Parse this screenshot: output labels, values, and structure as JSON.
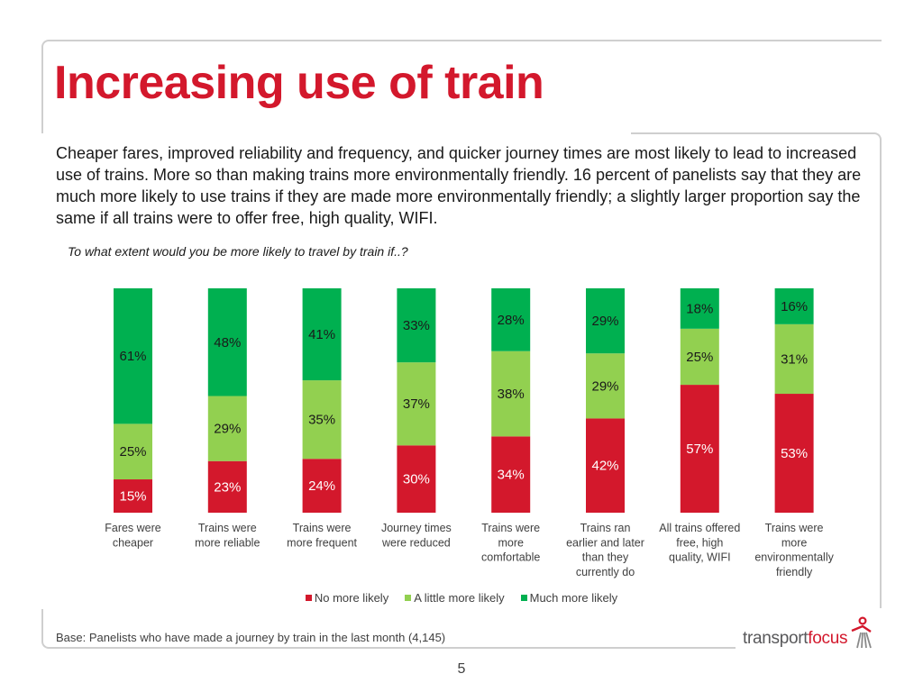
{
  "title": "Increasing use of train",
  "intro": "Cheaper fares, improved reliability and frequency, and quicker journey times are most likely to lead to increased use of trains. More so than making trains more environmentally friendly. 16 percent of panelists say that they are much more likely to use trains if they are made more environmentally friendly; a slightly larger proportion say the same if all trains were to offer free, high quality, WIFI.",
  "question": "To what extent would you be more likely to travel by train if..?",
  "colors": {
    "red": "#d3182c",
    "light_green": "#92d050",
    "dark_green": "#00b050"
  },
  "chart_data": {
    "type": "bar",
    "stacked": true,
    "unit": "%",
    "categories": [
      "Fares were cheaper",
      "Trains were more reliable",
      "Trains were more frequent",
      "Journey times were reduced",
      "Trains were more comfortable",
      "Trains ran earlier and later than they currently do",
      "All trains offered free, high quality, WIFI",
      "Trains were more environmentally friendly"
    ],
    "category_lines": [
      [
        "Fares were",
        "cheaper"
      ],
      [
        "Trains were",
        "more reliable"
      ],
      [
        "Trains were",
        "more frequent"
      ],
      [
        "Journey times",
        "were reduced"
      ],
      [
        "Trains were",
        "more",
        "comfortable"
      ],
      [
        "Trains ran",
        "earlier and later",
        "than they",
        "currently do"
      ],
      [
        "All trains offered",
        "free, high",
        "quality, WIFI"
      ],
      [
        "Trains were",
        "more",
        "environmentally",
        "friendly"
      ]
    ],
    "series": [
      {
        "name": "No more likely",
        "color": "#d3182c",
        "values": [
          15,
          23,
          24,
          30,
          34,
          42,
          57,
          53
        ]
      },
      {
        "name": "A little more likely",
        "color": "#92d050",
        "values": [
          25,
          29,
          35,
          37,
          38,
          29,
          25,
          31
        ]
      },
      {
        "name": "Much more likely",
        "color": "#00b050",
        "values": [
          61,
          48,
          41,
          33,
          28,
          29,
          18,
          16
        ]
      }
    ],
    "legend_position": "bottom"
  },
  "legend": [
    "No more likely",
    "A little more likely",
    "Much more likely"
  ],
  "base_note": "Base: Panelists who have made a journey by train in the last month (4,145)",
  "page_number": "5",
  "logo": {
    "part1": "transport",
    "part2": "focus"
  }
}
